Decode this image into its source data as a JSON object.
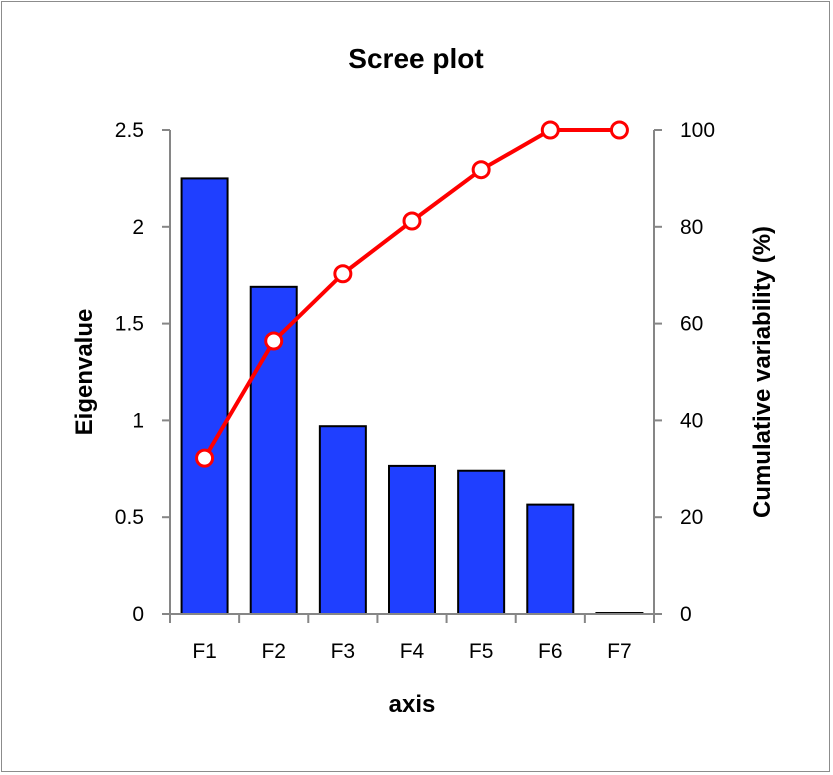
{
  "chart_data": {
    "type": "bar",
    "title": "Scree plot",
    "xlabel": "axis",
    "ylabel": "Eigenvalue",
    "y2label": "Cumulative variability (%)",
    "categories": [
      "F1",
      "F2",
      "F3",
      "F4",
      "F5",
      "F6",
      "F7"
    ],
    "ylim": [
      0,
      2.5
    ],
    "y2lim": [
      0,
      100
    ],
    "yticks": [
      "0",
      "0.5",
      "1",
      "1.5",
      "2",
      "2.5"
    ],
    "y2ticks": [
      "0",
      "20",
      "40",
      "60",
      "80",
      "100"
    ],
    "grid": false,
    "series": [
      {
        "type": "bar",
        "axis": "left",
        "color": "#1f3fff",
        "values": [
          2.25,
          1.69,
          0.97,
          0.765,
          0.74,
          0.565,
          0.005
        ]
      },
      {
        "type": "line",
        "axis": "right",
        "color": "#ff0000",
        "values": [
          32.2,
          56.4,
          70.3,
          81.2,
          91.8,
          100,
          100
        ]
      }
    ]
  }
}
